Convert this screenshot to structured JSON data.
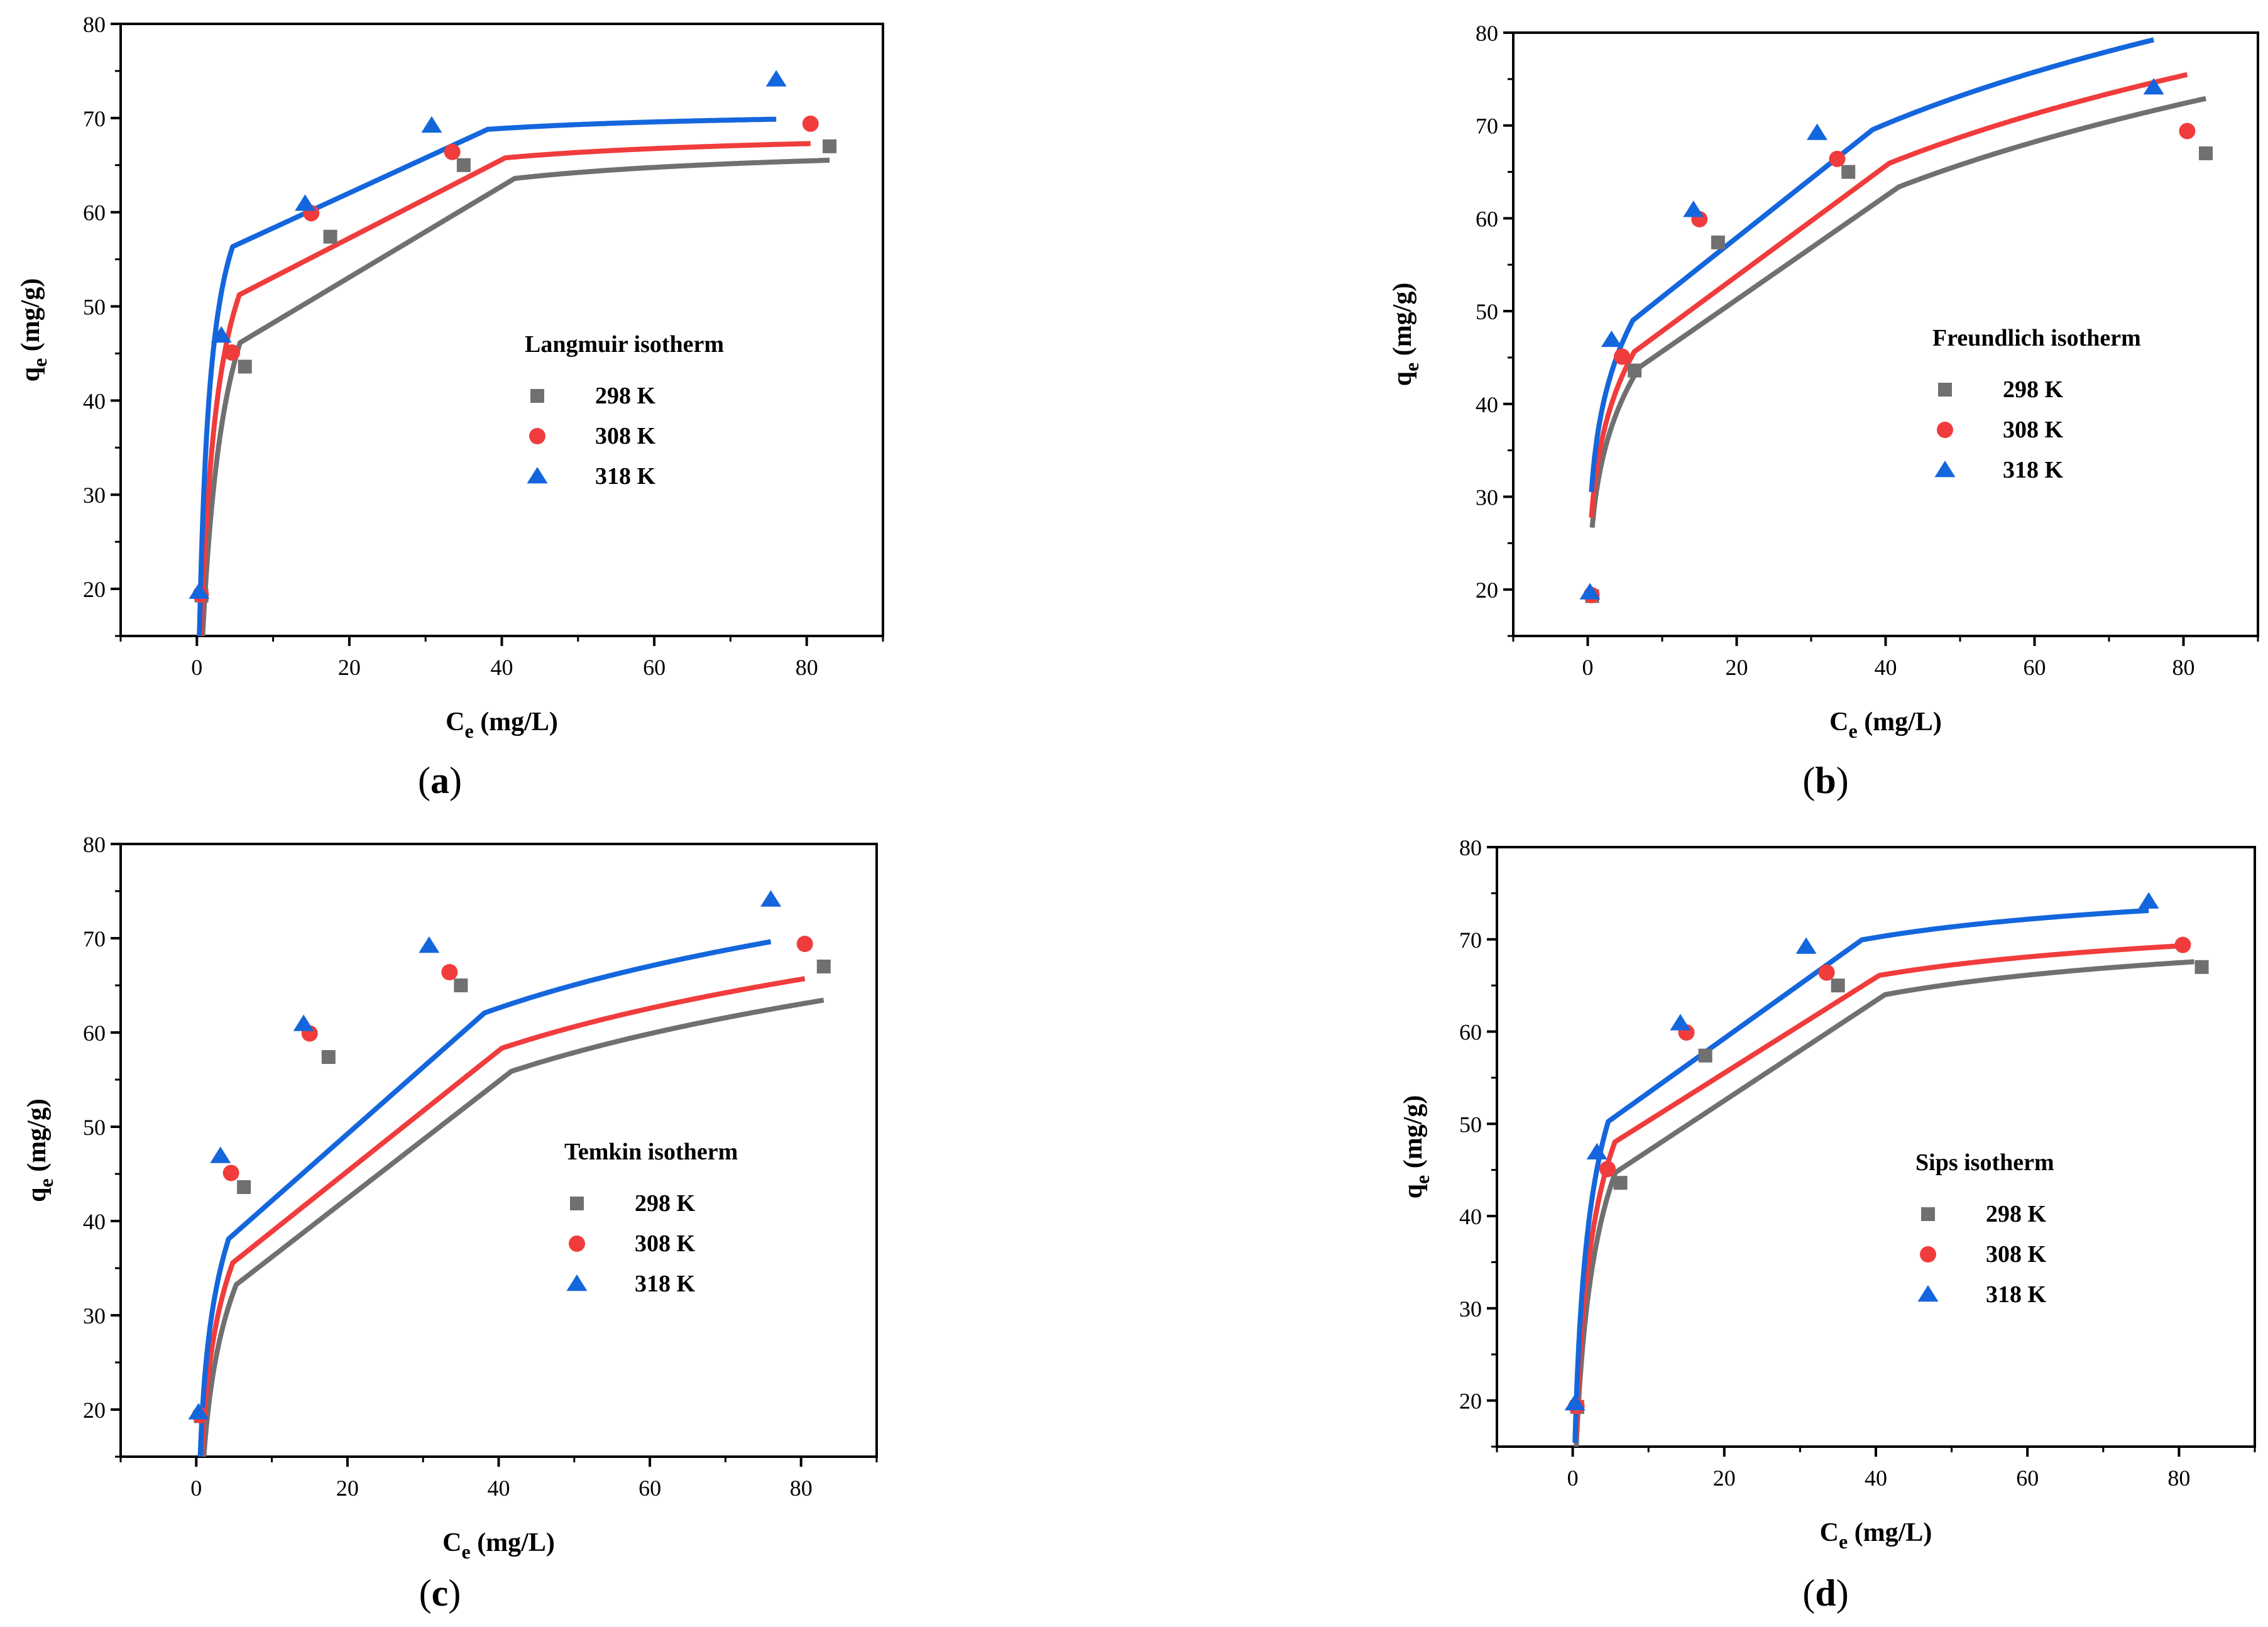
{
  "figure": {
    "panel_labels": [
      "a",
      "b",
      "c",
      "d"
    ]
  },
  "colors": {
    "298 K": "#707070",
    "308 K": "#f03c3c",
    "318 K": "#1466dc"
  },
  "chart_data": [
    {
      "type": "scatter",
      "panel": "a",
      "legend_title": "Langmuir isotherm",
      "xlabel": "C_e (mg/L)",
      "ylabel": "q_e (mg/g)",
      "xlim": [
        -10,
        90
      ],
      "ylim": [
        15,
        80
      ],
      "xticks": [
        0,
        20,
        40,
        60,
        80
      ],
      "yticks": [
        20,
        30,
        40,
        50,
        60,
        70,
        80
      ],
      "legend_position": "center-right",
      "series": [
        {
          "name": "298 K",
          "marker": "square",
          "x": [
            0.6,
            6.3,
            17.5,
            35.0,
            83.0
          ],
          "y": [
            19.3,
            43.6,
            57.4,
            65.0,
            67.0
          ],
          "fit": {
            "model": "langmuir",
            "qm": 67.6,
            "k": 0.38,
            "x_range": [
              0.4,
              83.0
            ]
          }
        },
        {
          "name": "308 K",
          "marker": "circle",
          "x": [
            0.5,
            4.6,
            15.0,
            33.5,
            80.5
          ],
          "y": [
            19.4,
            45.1,
            59.9,
            66.4,
            69.4
          ],
          "fit": {
            "model": "langmuir",
            "qm": 68.9,
            "k": 0.52,
            "x_range": [
              0.4,
              80.5
            ]
          }
        },
        {
          "name": "318 K",
          "marker": "triangle",
          "x": [
            0.3,
            3.2,
            14.2,
            30.8,
            76.0
          ],
          "y": [
            19.7,
            46.9,
            60.9,
            69.2,
            74.1
          ],
          "fit": {
            "model": "langmuir",
            "qm": 71.0,
            "k": 0.82,
            "x_range": [
              0.3,
              76.0
            ]
          }
        }
      ]
    },
    {
      "type": "scatter",
      "panel": "b",
      "legend_title": "Freundlich isotherm",
      "xlabel": "C_e (mg/L)",
      "ylabel": "q_e (mg/g)",
      "xlim": [
        -10,
        90
      ],
      "ylim": [
        15,
        80
      ],
      "xticks": [
        0,
        20,
        40,
        60,
        80
      ],
      "yticks": [
        20,
        30,
        40,
        50,
        60,
        70,
        80
      ],
      "legend_position": "center-right",
      "series": [
        {
          "name": "298 K",
          "marker": "square",
          "x": [
            0.6,
            6.3,
            17.5,
            35.0,
            83.0
          ],
          "y": [
            19.3,
            43.6,
            57.4,
            65.0,
            67.0
          ],
          "fit": {
            "model": "freundlich",
            "kf": 29.6,
            "n_inv": 0.204,
            "x_range": [
              0.6,
              83.0
            ]
          }
        },
        {
          "name": "308 K",
          "marker": "circle",
          "x": [
            0.5,
            4.6,
            15.0,
            33.5,
            80.5
          ],
          "y": [
            19.4,
            45.1,
            59.9,
            66.4,
            69.4
          ],
          "fit": {
            "model": "freundlich",
            "kf": 31.8,
            "n_inv": 0.197,
            "x_range": [
              0.5,
              80.5
            ]
          }
        },
        {
          "name": "318 K",
          "marker": "triangle",
          "x": [
            0.3,
            3.2,
            14.2,
            30.8,
            76.0
          ],
          "y": [
            19.7,
            46.9,
            60.9,
            69.2,
            74.1
          ],
          "fit": {
            "model": "freundlich",
            "kf": 34.8,
            "n_inv": 0.19,
            "x_range": [
              0.5,
              76.0
            ]
          }
        }
      ]
    },
    {
      "type": "scatter",
      "panel": "c",
      "legend_title": "Temkin isotherm",
      "xlabel": "C_e (mg/L)",
      "ylabel": "q_e (mg/g)",
      "xlim": [
        -10,
        90
      ],
      "ylim": [
        15,
        80
      ],
      "xticks": [
        0,
        20,
        40,
        60,
        80
      ],
      "yticks": [
        20,
        30,
        40,
        50,
        60,
        70,
        80
      ],
      "legend_position": "center-right",
      "series": [
        {
          "name": "298 K",
          "marker": "square",
          "x": [
            0.6,
            6.3,
            17.5,
            35.0,
            83.0
          ],
          "y": [
            19.3,
            43.6,
            57.4,
            65.0,
            67.0
          ],
          "fit": {
            "model": "temkin",
            "b": 10.96,
            "a": 3.93,
            "x_range": [
              0.35,
              83.0
            ]
          }
        },
        {
          "name": "308 K",
          "marker": "circle",
          "x": [
            0.5,
            4.6,
            15.0,
            33.5,
            80.5
          ],
          "y": [
            19.4,
            45.1,
            59.9,
            66.4,
            69.4
          ],
          "fit": {
            "model": "temkin",
            "b": 10.71,
            "a": 5.74,
            "x_range": [
              0.3,
              80.5
            ]
          }
        },
        {
          "name": "318 K",
          "marker": "triangle",
          "x": [
            0.3,
            3.2,
            14.2,
            30.8,
            76.0
          ],
          "y": [
            19.7,
            46.9,
            60.9,
            69.2,
            74.1
          ],
          "fit": {
            "model": "temkin",
            "b": 10.96,
            "a": 7.56,
            "x_range": [
              0.25,
              76.0
            ]
          }
        }
      ]
    },
    {
      "type": "scatter",
      "panel": "d",
      "legend_title": "Sips isotherm",
      "xlabel": "C_e (mg/L)",
      "ylabel": "q_e (mg/g)",
      "xlim": [
        -10,
        90
      ],
      "ylim": [
        15,
        80
      ],
      "xticks": [
        0,
        20,
        40,
        60,
        80
      ],
      "yticks": [
        20,
        30,
        40,
        50,
        60,
        70,
        80
      ],
      "legend_position": "center-right",
      "series": [
        {
          "name": "298 K",
          "marker": "square",
          "x": [
            0.6,
            6.3,
            17.5,
            35.0,
            83.0
          ],
          "y": [
            19.3,
            43.6,
            57.4,
            65.0,
            67.0
          ],
          "fit": {
            "model": "sips",
            "qm": 74.0,
            "k": 0.32,
            "n": 0.72,
            "x_range": [
              0.4,
              82.0
            ]
          }
        },
        {
          "name": "308 K",
          "marker": "circle",
          "x": [
            0.5,
            4.6,
            15.0,
            33.5,
            80.5
          ],
          "y": [
            19.4,
            45.1,
            59.9,
            66.4,
            69.4
          ],
          "fit": {
            "model": "sips",
            "qm": 75.0,
            "k": 0.4,
            "n": 0.72,
            "x_range": [
              0.4,
              80.5
            ]
          }
        },
        {
          "name": "318 K",
          "marker": "triangle",
          "x": [
            0.3,
            3.2,
            14.2,
            30.8,
            76.0
          ],
          "y": [
            19.7,
            46.9,
            60.9,
            69.2,
            74.1
          ],
          "fit": {
            "model": "sips",
            "qm": 78.7,
            "k": 0.47,
            "n": 0.72,
            "x_range": [
              0.3,
              76.0
            ]
          }
        }
      ]
    }
  ]
}
